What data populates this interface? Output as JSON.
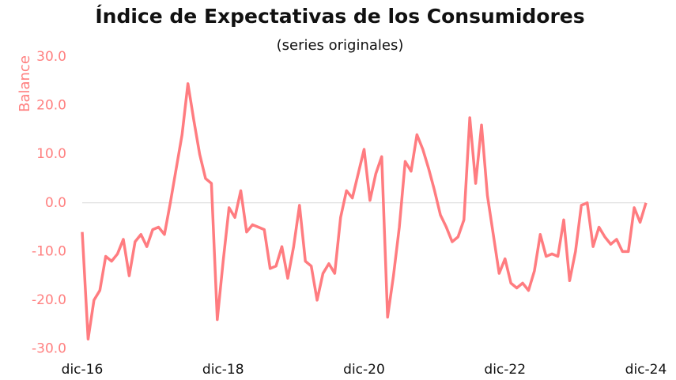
{
  "chart_data": {
    "type": "line",
    "title": "Índice de Expectativas de los Consumidores",
    "subtitle": "(series originales)",
    "y_label": "Balance",
    "axis_color": "#ff8080",
    "categories": [
      "dic-16",
      null,
      null,
      null,
      null,
      null,
      null,
      null,
      null,
      null,
      null,
      null,
      null,
      null,
      null,
      null,
      null,
      null,
      null,
      null,
      null,
      null,
      null,
      null,
      "dic-18",
      null,
      null,
      null,
      null,
      null,
      null,
      null,
      null,
      null,
      null,
      null,
      null,
      null,
      null,
      null,
      null,
      null,
      null,
      null,
      null,
      null,
      null,
      null,
      "dic-20",
      null,
      null,
      null,
      null,
      null,
      null,
      null,
      null,
      null,
      null,
      null,
      null,
      null,
      null,
      null,
      null,
      null,
      null,
      null,
      null,
      null,
      null,
      null,
      "dic-22",
      null,
      null,
      null,
      null,
      null,
      null,
      null,
      null,
      null,
      null,
      null,
      null,
      null,
      null,
      null,
      null,
      null,
      null,
      null,
      null,
      null,
      null,
      null,
      "dic-24"
    ],
    "series": [
      {
        "name": "Índice de Expectativas de los Consumidores",
        "color": "#ff7c80",
        "values": [
          -6,
          -28,
          -20,
          -18,
          -11,
          -12,
          -10.5,
          -7.5,
          -15,
          -8,
          -6.5,
          -9,
          -5.5,
          -5,
          -6.5,
          0,
          7,
          14,
          24.5,
          17,
          10,
          5,
          4,
          -24,
          -12,
          -1,
          -3,
          2.5,
          -6,
          -4.5,
          -5,
          -5.5,
          -13.5,
          -13,
          -9,
          -15.5,
          -9,
          -0.5,
          -12,
          -13,
          -20,
          -14.5,
          -12.5,
          -14.5,
          -3,
          2.5,
          1,
          6,
          11,
          0.5,
          6,
          9.5,
          -23.5,
          -15,
          -5,
          8.5,
          6.5,
          14,
          11,
          7,
          2.5,
          -2.5,
          -5,
          -8,
          -7,
          -3.5,
          17.5,
          4,
          16,
          1.5,
          -6.5,
          -14.5,
          -11.5,
          -16.5,
          -17.5,
          -16.5,
          -18,
          -14,
          -6.5,
          -11,
          -10.5,
          -11,
          -3.5,
          -16,
          -10,
          -0.5,
          0,
          -9,
          -5,
          -7,
          -8.5,
          -7.5,
          -10,
          -10,
          -1,
          -4,
          0
        ]
      }
    ],
    "ylim": [
      -30,
      30
    ],
    "yticks": [
      {
        "value": -30,
        "label": "-30.0"
      },
      {
        "value": -20,
        "label": "-20.0"
      },
      {
        "value": -10,
        "label": "-10.0"
      },
      {
        "value": 0,
        "label": "0.0"
      },
      {
        "value": 10,
        "label": "10.0"
      },
      {
        "value": 20,
        "label": "20.0"
      },
      {
        "value": 30,
        "label": "30.0"
      }
    ],
    "grid": false
  }
}
